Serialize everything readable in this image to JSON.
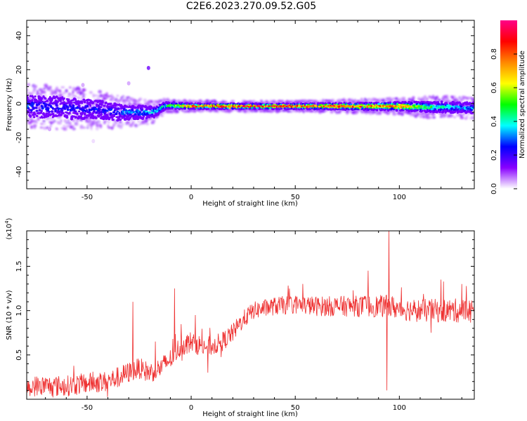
{
  "title": "C2E6.2023.270.09.52.G05",
  "chart_data": [
    {
      "type": "heatmap",
      "xlabel": "Height of straight line (km)",
      "ylabel": "Frequency (Hz)",
      "xlim": [
        -79,
        136
      ],
      "ylim": [
        -50,
        49
      ],
      "xticks": [
        -50,
        0,
        50,
        100
      ],
      "yticks": [
        -40,
        -20,
        0,
        20,
        40
      ],
      "colorbar": {
        "label": "Normalized spectral amplitude",
        "range": [
          0,
          1
        ],
        "ticks": [
          "0.0",
          "0.2",
          "0.4",
          "0.6",
          "0.8"
        ],
        "colors": [
          "#ffffff",
          "#8800ff",
          "#0000ff",
          "#00ffff",
          "#00ff00",
          "#ffff00",
          "#ff8800",
          "#ff0000",
          "#ff0088"
        ]
      },
      "ridge": {
        "x": [
          -79,
          -60,
          -45,
          -35,
          -25,
          -18,
          -12,
          0,
          25,
          50,
          75,
          100,
          115,
          125,
          136
        ],
        "center_hz": [
          -1.5,
          -2.5,
          -3.5,
          -5,
          -5,
          -5,
          -1,
          -1.5,
          -1.5,
          -1.5,
          -1.5,
          -1.5,
          -2,
          -2,
          -2.5
        ],
        "width_hz": [
          8,
          8,
          7,
          6,
          5,
          4,
          2.5,
          2,
          2,
          2,
          2.5,
          3,
          4,
          4,
          4
        ],
        "peak_amplitude": [
          0.3,
          0.25,
          0.25,
          0.3,
          0.35,
          0.4,
          0.5,
          0.8,
          0.9,
          0.9,
          0.85,
          0.85,
          0.5,
          0.4,
          0.35
        ]
      },
      "outliers": [
        {
          "x": -20.5,
          "y": 21,
          "amplitude": 0.15
        },
        {
          "x": -68,
          "y": -15,
          "amplitude": 0.05
        },
        {
          "x": -52,
          "y": 11,
          "amplitude": 0.05
        },
        {
          "x": -30,
          "y": 12,
          "amplitude": 0.05
        },
        {
          "x": -47,
          "y": -22,
          "amplitude": 0.02
        }
      ]
    },
    {
      "type": "line",
      "xlabel": "Height of straight line (km)",
      "ylabel": "SNR (10 * v/v)",
      "y_multiplier": "(x10^4)",
      "y_multiplier_base": "(x10",
      "y_multiplier_exp": "4",
      "y_multiplier_close": ")",
      "xlim": [
        -79,
        136
      ],
      "ylim": [
        0.0,
        1.9
      ],
      "xticks": [
        -50,
        0,
        50,
        100
      ],
      "yticks": [
        0.5,
        1.0,
        1.5
      ],
      "ytick_labels": [
        "0.5",
        "1.0",
        "1.5"
      ],
      "series_color": "#ee3030",
      "trend": {
        "x": [
          -79,
          -70,
          -60,
          -50,
          -40,
          -35,
          -30,
          -25,
          -20,
          -15,
          -10,
          -5,
          0,
          5,
          10,
          15,
          20,
          25,
          30,
          40,
          50,
          60,
          70,
          80,
          90,
          95,
          100,
          110,
          120,
          130,
          136
        ],
        "y": [
          0.15,
          0.15,
          0.15,
          0.18,
          0.2,
          0.25,
          0.3,
          0.35,
          0.3,
          0.35,
          0.45,
          0.6,
          0.65,
          0.6,
          0.6,
          0.65,
          0.75,
          0.9,
          1.0,
          1.05,
          1.07,
          1.05,
          1.05,
          1.05,
          1.05,
          1.05,
          1.02,
          1.0,
          1.0,
          1.0,
          1.0
        ]
      },
      "noise": {
        "x": [
          -79,
          -30,
          0,
          30,
          80,
          100,
          136
        ],
        "amplitude": [
          0.12,
          0.12,
          0.12,
          0.1,
          0.12,
          0.13,
          0.14
        ]
      },
      "spikes": [
        {
          "x": -28,
          "y": 1.1
        },
        {
          "x": -8,
          "y": 1.25
        },
        {
          "x": 2,
          "y": 0.95
        },
        {
          "x": 8,
          "y": 0.3
        },
        {
          "x": 85,
          "y": 1.45
        },
        {
          "x": 95,
          "y": 1.9
        },
        {
          "x": 94,
          "y": 0.1
        },
        {
          "x": 120,
          "y": 1.35
        },
        {
          "x": 130,
          "y": 1.3
        }
      ]
    }
  ]
}
